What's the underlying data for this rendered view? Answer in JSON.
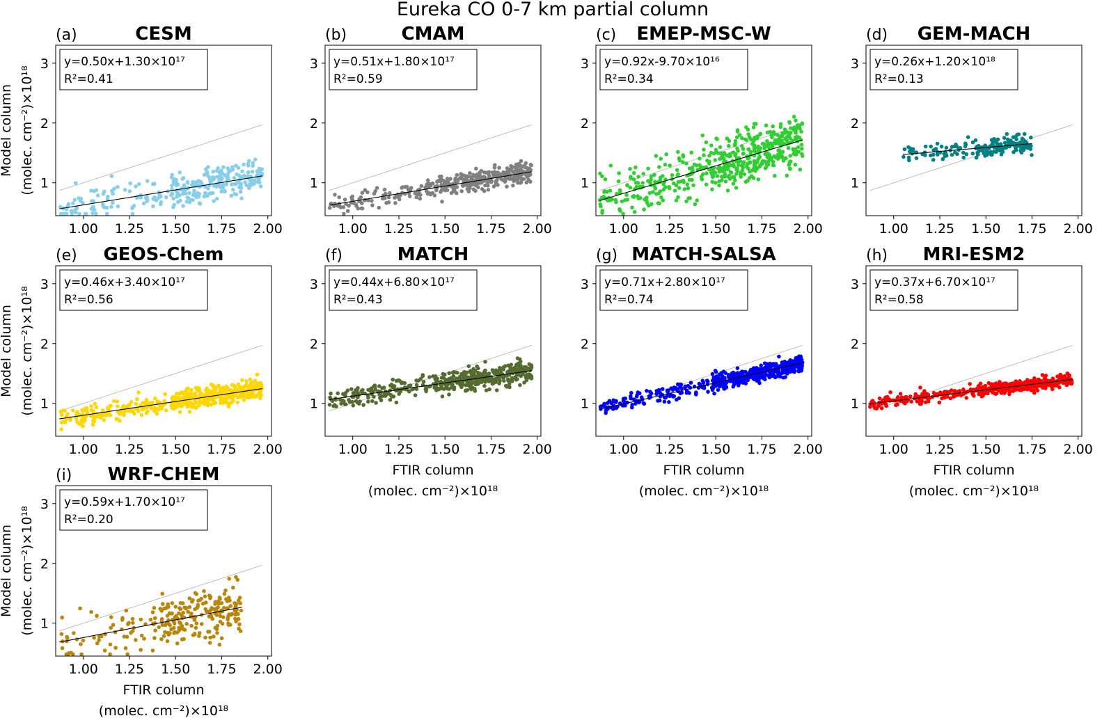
{
  "figure_title": "Eureka CO 0-7 km partial column",
  "common": {
    "x_ticks": [
      "1.00",
      "1.25",
      "1.50",
      "1.75",
      "2.00"
    ],
    "y_ticks": [
      "1",
      "2",
      "3"
    ],
    "xlabel_line1": "FTIR column",
    "xlabel_line2": "(molec. cm⁻²)×10¹⁸",
    "ylabel_line1": "Model column",
    "ylabel_line2": "(molec. cm⁻²)×10¹⁸"
  },
  "chart_data": [
    {
      "type": "scatter",
      "panel": "(a)",
      "title": "CESM",
      "color": "#87ceeb",
      "slope": 0.5,
      "intercept_e18": 0.13,
      "fit_label": "y=0.50x+1.30×10¹⁷",
      "r2_label": "R²=0.41",
      "x_range": [
        0.87,
        1.97
      ],
      "xlim": [
        0.85,
        2.02
      ],
      "ylim": [
        0.45,
        3.3
      ],
      "y_center": 0.78,
      "spread": 0.14,
      "n": 320,
      "show_xlabel": false,
      "show_ylabel": true
    },
    {
      "type": "scatter",
      "panel": "(b)",
      "title": "CMAM",
      "color": "#808080",
      "slope": 0.51,
      "intercept_e18": 0.18,
      "fit_label": "y=0.51x+1.80×10¹⁷",
      "r2_label": "R²=0.59",
      "x_range": [
        0.87,
        1.97
      ],
      "xlim": [
        0.85,
        2.02
      ],
      "ylim": [
        0.45,
        3.3
      ],
      "y_center": 0.85,
      "spread": 0.09,
      "n": 380,
      "show_xlabel": false,
      "show_ylabel": false
    },
    {
      "type": "scatter",
      "panel": "(c)",
      "title": "EMEP-MSC-W",
      "color": "#32cd32",
      "slope": 0.92,
      "intercept_e18": -0.097,
      "fit_label": "y=0.92x-9.70×10¹⁶",
      "r2_label": "R²=0.34",
      "x_range": [
        0.87,
        1.97
      ],
      "xlim": [
        0.85,
        2.02
      ],
      "ylim": [
        0.45,
        3.3
      ],
      "y_center": 1.2,
      "spread": 0.22,
      "n": 520,
      "show_xlabel": false,
      "show_ylabel": false
    },
    {
      "type": "scatter",
      "panel": "(d)",
      "title": "GEM-MACH",
      "color": "#008080",
      "slope": 0.26,
      "intercept_e18": 1.2,
      "fit_label": "y=0.26x+1.20×10¹⁸",
      "r2_label": "R²=0.13",
      "x_range": [
        1.05,
        1.75
      ],
      "xlim": [
        0.85,
        2.02
      ],
      "ylim": [
        0.45,
        3.3
      ],
      "y_center": 1.6,
      "spread": 0.08,
      "n": 180,
      "show_xlabel": false,
      "show_ylabel": false
    },
    {
      "type": "scatter",
      "panel": "(e)",
      "title": "GEOS-Chem",
      "color": "#ffd700",
      "slope": 0.46,
      "intercept_e18": 0.34,
      "fit_label": "y=0.46x+3.40×10¹⁷",
      "r2_label": "R²=0.56",
      "x_range": [
        0.87,
        1.97
      ],
      "xlim": [
        0.85,
        2.02
      ],
      "ylim": [
        0.45,
        3.3
      ],
      "y_center": 1.0,
      "spread": 0.08,
      "n": 520,
      "show_xlabel": false,
      "show_ylabel": true
    },
    {
      "type": "scatter",
      "panel": "(f)",
      "title": "MATCH",
      "color": "#556b2f",
      "slope": 0.44,
      "intercept_e18": 0.68,
      "fit_label": "y=0.44x+6.80×10¹⁷",
      "r2_label": "R²=0.43",
      "x_range": [
        0.87,
        1.97
      ],
      "xlim": [
        0.85,
        2.02
      ],
      "ylim": [
        0.45,
        3.3
      ],
      "y_center": 1.3,
      "spread": 0.09,
      "n": 480,
      "show_xlabel": true,
      "show_ylabel": false
    },
    {
      "type": "scatter",
      "panel": "(g)",
      "title": "MATCH-SALSA",
      "color": "#0000ff",
      "slope": 0.71,
      "intercept_e18": 0.28,
      "fit_label": "y=0.71x+2.80×10¹⁷",
      "r2_label": "R²=0.74",
      "x_range": [
        0.87,
        1.97
      ],
      "xlim": [
        0.85,
        2.02
      ],
      "ylim": [
        0.45,
        3.3
      ],
      "y_center": 1.3,
      "spread": 0.07,
      "n": 520,
      "show_xlabel": true,
      "show_ylabel": false
    },
    {
      "type": "scatter",
      "panel": "(h)",
      "title": "MRI-ESM2",
      "color": "#ff0000",
      "slope": 0.37,
      "intercept_e18": 0.67,
      "fit_label": "y=0.37x+6.70×10¹⁷",
      "r2_label": "R²=0.58",
      "x_range": [
        0.87,
        1.97
      ],
      "xlim": [
        0.85,
        2.02
      ],
      "ylim": [
        0.45,
        3.3
      ],
      "y_center": 1.2,
      "spread": 0.05,
      "n": 520,
      "show_xlabel": true,
      "show_ylabel": false
    },
    {
      "type": "scatter",
      "panel": "(i)",
      "title": "WRF-CHEM",
      "color": "#b8860b",
      "slope": 0.59,
      "intercept_e18": 0.17,
      "fit_label": "y=0.59x+1.70×10¹⁷",
      "r2_label": "R²=0.20",
      "x_range": [
        0.87,
        1.86
      ],
      "xlim": [
        0.85,
        2.02
      ],
      "ylim": [
        0.45,
        3.3
      ],
      "y_center": 0.9,
      "spread": 0.2,
      "n": 260,
      "show_xlabel": true,
      "show_ylabel": true
    }
  ]
}
